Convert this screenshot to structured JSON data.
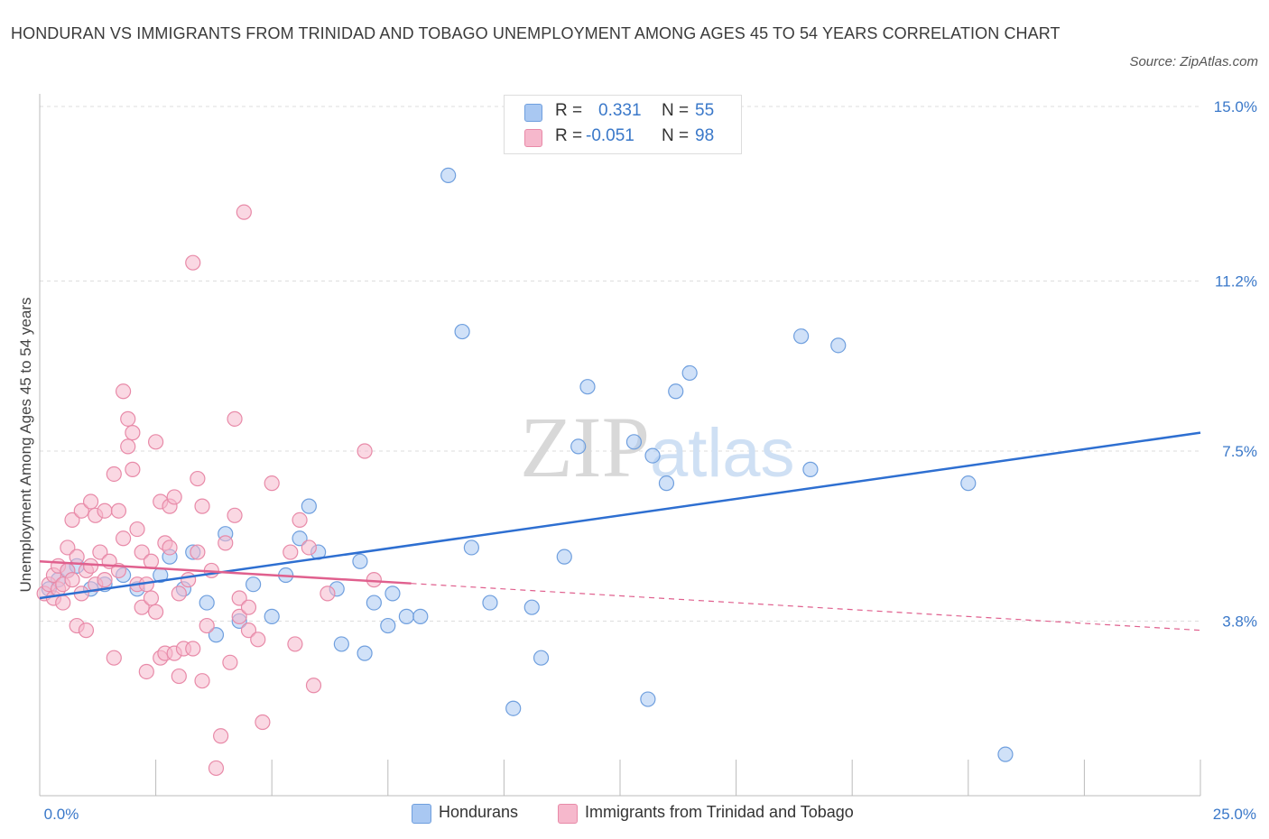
{
  "title": "HONDURAN VS IMMIGRANTS FROM TRINIDAD AND TOBAGO UNEMPLOYMENT AMONG AGES 45 TO 54 YEARS CORRELATION CHART",
  "source": "Source: ZipAtlas.com",
  "watermark": {
    "zip": "ZIP",
    "atlas": "atlas"
  },
  "legend_stats": [
    {
      "r_label": "R =",
      "r_value": "0.331",
      "n_label": "N =",
      "n_value": "55",
      "color": "#a9c8f2"
    },
    {
      "r_label": "R =",
      "r_value": "-0.051",
      "n_label": "N =",
      "n_value": "98",
      "color": "#f6b8cc"
    }
  ],
  "chart_data": {
    "type": "scatter",
    "xlabel": "",
    "ylabel": "Unemployment Among Ages 45 to 54 years",
    "xlim": [
      0,
      25
    ],
    "ylim": [
      0,
      15
    ],
    "x_tick_labels": [
      "0.0%",
      "25.0%"
    ],
    "y_ticks": [
      3.8,
      7.5,
      11.2,
      15.0
    ],
    "y_tick_labels": [
      "3.8%",
      "7.5%",
      "11.2%",
      "15.0%"
    ],
    "grid": true,
    "legend_position": "bottom",
    "series": [
      {
        "name": "Hondurans",
        "color": "#a9c8f2",
        "stroke": "#6f9fde",
        "trend": {
          "x": [
            0,
            25
          ],
          "y": [
            4.3,
            7.9
          ],
          "color": "#2e6fd1",
          "dashed_from": null
        },
        "points": [
          [
            0.2,
            4.5
          ],
          [
            0.4,
            4.7
          ],
          [
            0.6,
            4.9
          ],
          [
            0.8,
            5.0
          ],
          [
            1.1,
            4.5
          ],
          [
            1.4,
            4.6
          ],
          [
            1.8,
            4.8
          ],
          [
            2.1,
            4.5
          ],
          [
            2.6,
            4.8
          ],
          [
            2.8,
            5.2
          ],
          [
            3.1,
            4.5
          ],
          [
            3.3,
            5.3
          ],
          [
            3.6,
            4.2
          ],
          [
            3.8,
            3.5
          ],
          [
            4.0,
            5.7
          ],
          [
            4.3,
            3.8
          ],
          [
            4.6,
            4.6
          ],
          [
            5.0,
            3.9
          ],
          [
            5.3,
            4.8
          ],
          [
            5.6,
            5.6
          ],
          [
            5.8,
            6.3
          ],
          [
            6.0,
            5.3
          ],
          [
            6.4,
            4.5
          ],
          [
            6.5,
            3.3
          ],
          [
            6.9,
            5.1
          ],
          [
            7.0,
            3.1
          ],
          [
            7.2,
            4.2
          ],
          [
            7.5,
            3.7
          ],
          [
            7.6,
            4.4
          ],
          [
            7.9,
            3.9
          ],
          [
            8.2,
            3.9
          ],
          [
            8.8,
            13.5
          ],
          [
            9.1,
            10.1
          ],
          [
            9.3,
            5.4
          ],
          [
            9.7,
            4.2
          ],
          [
            10.2,
            1.9
          ],
          [
            10.6,
            4.1
          ],
          [
            10.8,
            3.0
          ],
          [
            11.3,
            5.2
          ],
          [
            11.6,
            7.6
          ],
          [
            11.8,
            8.9
          ],
          [
            12.8,
            7.7
          ],
          [
            13.1,
            2.1
          ],
          [
            13.2,
            7.4
          ],
          [
            13.5,
            6.8
          ],
          [
            13.7,
            8.8
          ],
          [
            14.0,
            9.2
          ],
          [
            16.4,
            10.0
          ],
          [
            16.6,
            7.1
          ],
          [
            17.2,
            9.8
          ],
          [
            20.0,
            6.8
          ],
          [
            20.8,
            0.9
          ]
        ]
      },
      {
        "name": "Immigrants from Trinidad and Tobago",
        "color": "#f6b8cc",
        "stroke": "#e88aa8",
        "trend": {
          "x": [
            0,
            25
          ],
          "y": [
            5.1,
            3.6
          ],
          "color": "#e0608e",
          "dashed_from": 8
        },
        "points": [
          [
            0.1,
            4.4
          ],
          [
            0.2,
            4.6
          ],
          [
            0.3,
            4.3
          ],
          [
            0.3,
            4.8
          ],
          [
            0.4,
            5.0
          ],
          [
            0.4,
            4.5
          ],
          [
            0.5,
            4.6
          ],
          [
            0.5,
            4.2
          ],
          [
            0.6,
            4.9
          ],
          [
            0.6,
            5.4
          ],
          [
            0.7,
            6.0
          ],
          [
            0.7,
            4.7
          ],
          [
            0.8,
            3.7
          ],
          [
            0.8,
            5.2
          ],
          [
            0.9,
            6.2
          ],
          [
            0.9,
            4.4
          ],
          [
            1.0,
            4.9
          ],
          [
            1.0,
            3.6
          ],
          [
            1.1,
            6.4
          ],
          [
            1.1,
            5.0
          ],
          [
            1.2,
            4.6
          ],
          [
            1.2,
            6.1
          ],
          [
            1.3,
            5.3
          ],
          [
            1.4,
            4.7
          ],
          [
            1.4,
            6.2
          ],
          [
            1.5,
            5.1
          ],
          [
            1.6,
            3.0
          ],
          [
            1.6,
            7.0
          ],
          [
            1.7,
            6.2
          ],
          [
            1.7,
            4.9
          ],
          [
            1.8,
            5.6
          ],
          [
            1.8,
            8.8
          ],
          [
            1.9,
            8.2
          ],
          [
            1.9,
            7.6
          ],
          [
            2.0,
            7.9
          ],
          [
            2.0,
            7.1
          ],
          [
            2.1,
            5.8
          ],
          [
            2.1,
            4.6
          ],
          [
            2.2,
            5.3
          ],
          [
            2.2,
            4.1
          ],
          [
            2.3,
            4.6
          ],
          [
            2.3,
            2.7
          ],
          [
            2.4,
            5.1
          ],
          [
            2.4,
            4.3
          ],
          [
            2.5,
            7.7
          ],
          [
            2.5,
            4.0
          ],
          [
            2.6,
            3.0
          ],
          [
            2.6,
            6.4
          ],
          [
            2.7,
            5.5
          ],
          [
            2.7,
            3.1
          ],
          [
            2.8,
            6.3
          ],
          [
            2.8,
            5.4
          ],
          [
            2.9,
            3.1
          ],
          [
            2.9,
            6.5
          ],
          [
            3.0,
            4.4
          ],
          [
            3.0,
            2.6
          ],
          [
            3.1,
            3.2
          ],
          [
            3.2,
            4.7
          ],
          [
            3.3,
            3.2
          ],
          [
            3.3,
            11.6
          ],
          [
            3.4,
            5.3
          ],
          [
            3.4,
            6.9
          ],
          [
            3.5,
            2.5
          ],
          [
            3.5,
            6.3
          ],
          [
            3.6,
            3.7
          ],
          [
            3.7,
            4.9
          ],
          [
            3.8,
            0.6
          ],
          [
            3.9,
            1.3
          ],
          [
            4.0,
            5.5
          ],
          [
            4.1,
            2.9
          ],
          [
            4.2,
            6.1
          ],
          [
            4.2,
            8.2
          ],
          [
            4.3,
            3.9
          ],
          [
            4.3,
            4.3
          ],
          [
            4.4,
            12.7
          ],
          [
            4.5,
            3.6
          ],
          [
            4.5,
            4.1
          ],
          [
            4.7,
            3.4
          ],
          [
            4.8,
            1.6
          ],
          [
            5.0,
            6.8
          ],
          [
            5.4,
            5.3
          ],
          [
            5.5,
            3.3
          ],
          [
            5.6,
            6.0
          ],
          [
            5.8,
            5.4
          ],
          [
            5.9,
            2.4
          ],
          [
            6.2,
            4.4
          ],
          [
            7.0,
            7.5
          ],
          [
            7.2,
            4.7
          ]
        ]
      }
    ]
  },
  "bottom_legend": [
    {
      "label": "Hondurans",
      "color": "#a9c8f2"
    },
    {
      "label": "Immigrants from Trinidad and Tobago",
      "color": "#f6b8cc"
    }
  ]
}
